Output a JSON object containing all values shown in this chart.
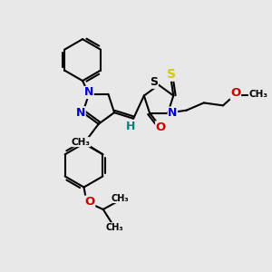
{
  "bg_color": "#e8e8e8",
  "bond_color": "#000000",
  "bond_width": 1.5,
  "atom_colors": {
    "N": "#0000cc",
    "O": "#cc0000",
    "S_thioxo": "#cccc00",
    "S_ring": "#000000",
    "H": "#008080",
    "C": "#000000"
  },
  "figsize": [
    3.0,
    3.0
  ],
  "dpi": 100,
  "xlim": [
    0,
    10
  ],
  "ylim": [
    0,
    10
  ]
}
